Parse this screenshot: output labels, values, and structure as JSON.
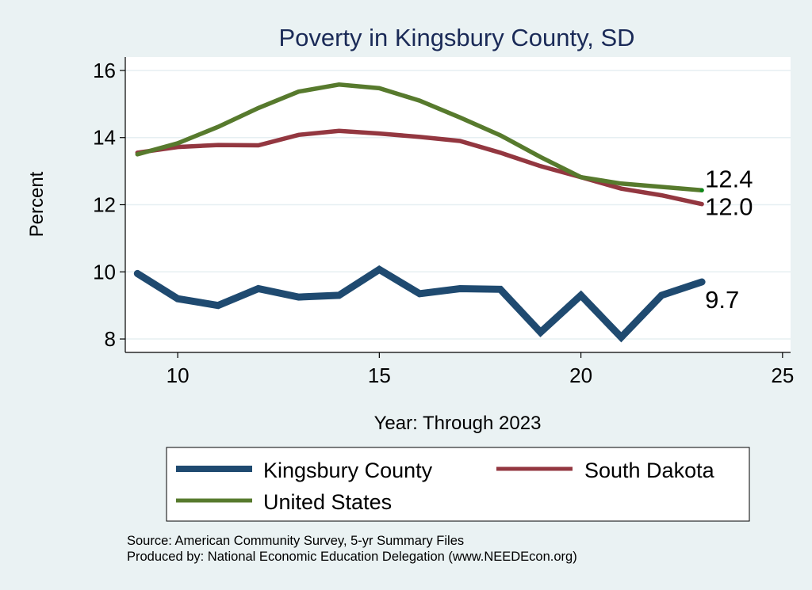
{
  "chart_data": {
    "type": "line",
    "title": "Poverty in Kingsbury County, SD",
    "xlabel": "Year: Through 2023",
    "ylabel": "Percent",
    "xlim": [
      8.7,
      25.2
    ],
    "ylim": [
      7.6,
      16.4
    ],
    "xticks": [
      10,
      15,
      20,
      25
    ],
    "yticks": [
      8,
      10,
      12,
      14,
      16
    ],
    "grid": "horizontal",
    "x": [
      9,
      10,
      11,
      12,
      13,
      14,
      15,
      16,
      17,
      18,
      19,
      20,
      21,
      22,
      23
    ],
    "series": [
      {
        "name": "Kingsbury County",
        "color": "#1f4a70",
        "values": [
          9.95,
          9.2,
          9.0,
          9.5,
          9.25,
          9.3,
          10.07,
          9.35,
          9.5,
          9.48,
          8.2,
          9.3,
          8.05,
          9.3,
          9.7
        ],
        "end_label": "9.7"
      },
      {
        "name": "South Dakota",
        "color": "#933740",
        "values": [
          13.55,
          13.72,
          13.78,
          13.77,
          14.08,
          14.2,
          14.12,
          14.02,
          13.9,
          13.55,
          13.15,
          12.82,
          12.48,
          12.28,
          12.02
        ],
        "end_label": "12.0"
      },
      {
        "name": "United States",
        "color": "#577a2d",
        "values": [
          13.5,
          13.83,
          14.32,
          14.88,
          15.37,
          15.58,
          15.47,
          15.1,
          14.6,
          14.07,
          13.42,
          12.82,
          12.63,
          12.53,
          12.43
        ],
        "end_label": "12.4"
      }
    ],
    "legend": {
      "position": "bottom",
      "entries": [
        "Kingsbury County",
        "South Dakota",
        "United States"
      ]
    },
    "notes": [
      "Source: American Community Survey, 5-yr Summary Files",
      "Produced by: National Economic Education Delegation (www.NEEDEcon.org)"
    ]
  }
}
